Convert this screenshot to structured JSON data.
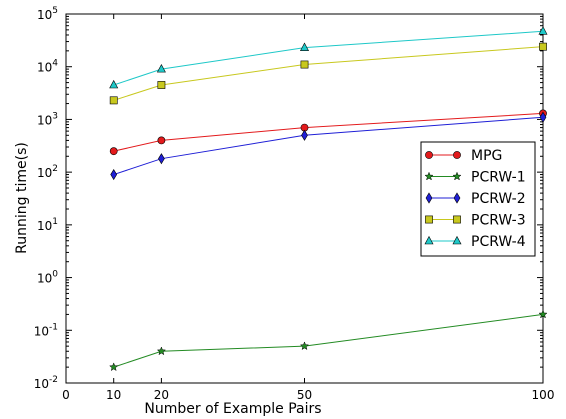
{
  "chart_data": {
    "type": "line",
    "xlabel": "Number of Example Pairs",
    "ylabel": "Running time(s)",
    "xlim": [
      0,
      100
    ],
    "ylim": [
      0.01,
      100000
    ],
    "yscale": "log",
    "xticks": [
      "0",
      "10",
      "20",
      "50",
      "100"
    ],
    "yticks": [
      {
        "base": "10",
        "exp": "-2"
      },
      {
        "base": "10",
        "exp": "-1"
      },
      {
        "base": "10",
        "exp": "0"
      },
      {
        "base": "10",
        "exp": "1"
      },
      {
        "base": "10",
        "exp": "2"
      },
      {
        "base": "10",
        "exp": "3"
      },
      {
        "base": "10",
        "exp": "4"
      },
      {
        "base": "10",
        "exp": "5"
      }
    ],
    "x": [
      10,
      20,
      50,
      100
    ],
    "grid": false,
    "legend_position": "center-right",
    "series": [
      {
        "name": "MPG",
        "color": "#e31a1c",
        "marker": "circle",
        "values": [
          250,
          400,
          700,
          1300
        ]
      },
      {
        "name": "PCRW-1",
        "color": "#238b23",
        "marker": "star",
        "values": [
          0.02,
          0.04,
          0.05,
          0.2
        ]
      },
      {
        "name": "PCRW-2",
        "color": "#1f1fd6",
        "marker": "diamond",
        "values": [
          90,
          180,
          500,
          1100
        ]
      },
      {
        "name": "PCRW-3",
        "color": "#c8c81e",
        "marker": "square",
        "values": [
          2300,
          4500,
          11000,
          24000
        ]
      },
      {
        "name": "PCRW-4",
        "color": "#1ec8c8",
        "marker": "triangle",
        "values": [
          4500,
          9000,
          23000,
          47000
        ]
      }
    ]
  }
}
